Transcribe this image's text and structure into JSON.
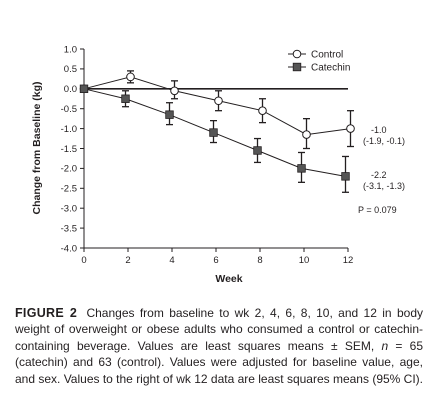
{
  "chart_data": {
    "type": "line",
    "xlabel": "Week",
    "ylabel": "Change from Baseline (kg)",
    "xlim": [
      0,
      12
    ],
    "ylim": [
      -4.0,
      1.0
    ],
    "x_ticks": [
      "0",
      "2",
      "4",
      "6",
      "8",
      "10",
      "12"
    ],
    "y_ticks": [
      "1.0",
      "0.5",
      "0.0",
      "-0.5",
      "-1.0",
      "-1.5",
      "-2.0",
      "-2.5",
      "-3.0",
      "-3.5",
      "-4.0"
    ],
    "x": [
      0,
      2,
      4,
      6,
      8,
      10,
      12
    ],
    "legend_position": "top-right",
    "grid": false,
    "series": [
      {
        "name": "Control",
        "marker": "open-circle",
        "color": "#231f20",
        "values": [
          0.0,
          0.3,
          -0.05,
          -0.3,
          -0.55,
          -1.15,
          -1.0
        ],
        "error_low": [
          0.0,
          0.15,
          -0.25,
          -0.55,
          -0.85,
          -1.5,
          -1.45
        ],
        "error_high": [
          0.0,
          0.45,
          0.2,
          -0.05,
          -0.25,
          -0.75,
          -0.55
        ]
      },
      {
        "name": "Catechin",
        "marker": "filled-square",
        "color": "#231f20",
        "values": [
          0.0,
          -0.25,
          -0.65,
          -1.1,
          -1.55,
          -2.0,
          -2.2
        ],
        "error_low": [
          0.0,
          -0.45,
          -0.9,
          -1.35,
          -1.85,
          -2.35,
          -2.6
        ],
        "error_high": [
          0.0,
          -0.05,
          -0.35,
          -0.8,
          -1.25,
          -1.6,
          -1.7
        ]
      }
    ],
    "annotations": [
      {
        "lines": [
          "-1.0",
          "(-1.9, -0.1)"
        ],
        "series": "Control"
      },
      {
        "lines": [
          "-2.2",
          "(-3.1, -1.3)"
        ],
        "series": "Catechin"
      },
      {
        "lines": [
          "P = 0.079"
        ]
      }
    ]
  },
  "caption": {
    "label": "FIGURE 2",
    "segments": [
      "Changes from baseline to wk 2, 4, 6, 8, 10, and 12 in body weight of overweight or obese adults who consumed a control or catechin-containing beverage. Values are least squares means ± SEM, ",
      "n",
      " = 65 (catechin) and 63 (control). Values were adjusted for baseline value, age, and sex. Values to the right of wk 12 data are least squares means (95% CI)."
    ]
  }
}
